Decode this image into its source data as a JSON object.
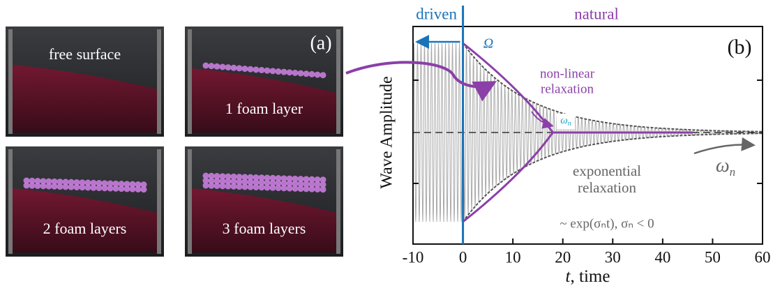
{
  "panel_a": {
    "label": "(a)",
    "photos": [
      "free surface",
      "1 foam layer",
      "2 foam layers",
      "3 foam layers"
    ]
  },
  "chart_data": {
    "type": "line",
    "panel": "(b)",
    "ylabel": "Wave Amplitude",
    "xlabel": {
      "symbol": "t",
      "text": ", time"
    },
    "xlim": [
      -10,
      60
    ],
    "xticks": [
      -10,
      0,
      10,
      20,
      30,
      40,
      50,
      60
    ],
    "regions": {
      "driven": "driven",
      "natural": "natural"
    },
    "annotations": {
      "forcing": "Ω",
      "nonlinear": [
        "non-linear",
        "relaxation"
      ],
      "omega_n": {
        "symbol": "ω",
        "sub": "n"
      },
      "exponential": [
        "exponential",
        "relaxation"
      ],
      "formula": "~ exp(σₙt), σₙ < 0"
    }
  }
}
